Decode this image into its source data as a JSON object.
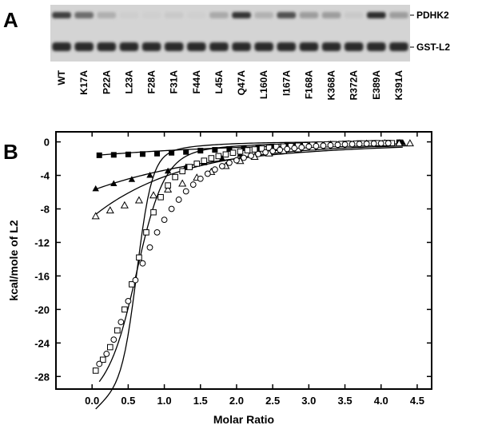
{
  "panel_a": {
    "letter": "A",
    "band_labels": {
      "upper": "PDHK2",
      "lower": "GST-L2"
    },
    "lanes": [
      {
        "label": "WT",
        "pdhk2": 0.78
      },
      {
        "label": "K17A",
        "pdhk2": 0.62
      },
      {
        "label": "P22A",
        "pdhk2": 0.32
      },
      {
        "label": "L23A",
        "pdhk2": 0.07
      },
      {
        "label": "F28A",
        "pdhk2": 0.05
      },
      {
        "label": "F31A",
        "pdhk2": 0.12
      },
      {
        "label": "F44A",
        "pdhk2": 0.05
      },
      {
        "label": "L45A",
        "pdhk2": 0.35
      },
      {
        "label": "Q47A",
        "pdhk2": 0.85
      },
      {
        "label": "L160A",
        "pdhk2": 0.3
      },
      {
        "label": "I167A",
        "pdhk2": 0.72
      },
      {
        "label": "F168A",
        "pdhk2": 0.42
      },
      {
        "label": "K368A",
        "pdhk2": 0.42
      },
      {
        "label": "R372A",
        "pdhk2": 0.12
      },
      {
        "label": "E389A",
        "pdhk2": 0.88
      },
      {
        "label": "K391A",
        "pdhk2": 0.42
      }
    ]
  },
  "panel_b": {
    "letter": "B"
  },
  "chart_data": {
    "type": "scatter",
    "xlabel": "Molar Ratio",
    "ylabel": "kcal/mole of L2",
    "xlim": [
      -0.5,
      4.7
    ],
    "ylim": [
      -29.5,
      1.2
    ],
    "xticks": [
      "0.0",
      "0.5",
      "1.0",
      "1.5",
      "2.0",
      "2.5",
      "3.0",
      "3.5",
      "4.0",
      "4.5"
    ],
    "yticks": [
      "0",
      "-4",
      "-8",
      "-12",
      "-16",
      "-20",
      "-24",
      "-28"
    ],
    "grid": false,
    "series": [
      {
        "marker": "filled-square",
        "x": [
          0.1,
          0.3,
          0.5,
          0.7,
          0.9,
          1.1,
          1.3,
          1.5,
          1.7,
          1.9,
          2.1,
          2.3,
          2.5,
          2.7,
          2.9,
          3.1,
          3.3,
          3.5,
          3.7,
          3.9,
          4.1,
          4.25
        ],
        "y": [
          -1.6,
          -1.55,
          -1.5,
          -1.45,
          -1.4,
          -1.3,
          -1.2,
          -1.05,
          -0.95,
          -0.85,
          -0.75,
          -0.65,
          -0.55,
          -0.45,
          -0.35,
          -0.3,
          -0.25,
          -0.2,
          -0.15,
          -0.12,
          -0.1,
          -0.05
        ],
        "fit": {
          "y0": -1.65,
          "ymax": 0.0,
          "k": 0.45
        }
      },
      {
        "marker": "filled-triangle",
        "x": [
          0.05,
          0.3,
          0.55,
          0.8,
          1.05,
          1.3,
          1.55,
          1.8,
          2.05,
          2.3,
          2.55,
          2.8,
          3.05,
          3.3,
          3.55,
          3.8,
          4.05,
          4.3
        ],
        "y": [
          -5.6,
          -5.0,
          -4.5,
          -4.0,
          -3.5,
          -3.0,
          -2.5,
          -2.0,
          -1.5,
          -1.1,
          -0.8,
          -0.5,
          -0.35,
          -0.25,
          -0.2,
          -0.15,
          -0.1,
          -0.1
        ],
        "fit": {
          "y0": -5.8,
          "ymax": -0.1,
          "k": 0.55
        }
      },
      {
        "marker": "open-triangle",
        "x": [
          0.05,
          0.25,
          0.45,
          0.65,
          0.85,
          1.05,
          1.25,
          1.45,
          1.65,
          1.85,
          2.05,
          2.25,
          2.45,
          2.65,
          2.85,
          3.05,
          3.25,
          3.45,
          3.65,
          3.85,
          4.05,
          4.25,
          4.4
        ],
        "y": [
          -8.9,
          -8.2,
          -7.6,
          -7.0,
          -6.4,
          -5.7,
          -5.0,
          -4.3,
          -3.6,
          -2.9,
          -2.3,
          -1.8,
          -1.4,
          -1.1,
          -0.9,
          -0.7,
          -0.55,
          -0.45,
          -0.35,
          -0.3,
          -0.25,
          -0.2,
          -0.2
        ],
        "fit": {
          "y0": -9.0,
          "ymax": -0.2,
          "k": 0.8
        }
      },
      {
        "marker": "open-square",
        "x": [
          0.05,
          0.15,
          0.25,
          0.35,
          0.45,
          0.55,
          0.65,
          0.75,
          0.85,
          0.95,
          1.05,
          1.15,
          1.25,
          1.35,
          1.45,
          1.55,
          1.65,
          1.75,
          1.85,
          1.95,
          2.05,
          2.15,
          2.25,
          2.35,
          2.45,
          2.55,
          2.65,
          2.75,
          2.85,
          2.95,
          3.05,
          3.15,
          3.25,
          3.35,
          3.45,
          3.55,
          3.65,
          3.75,
          3.85,
          3.95,
          4.05,
          4.15
        ],
        "y": [
          -27.3,
          -26.0,
          -24.5,
          -22.5,
          -20.0,
          -17.0,
          -13.8,
          -10.8,
          -8.4,
          -6.6,
          -5.2,
          -4.2,
          -3.5,
          -3.0,
          -2.6,
          -2.25,
          -1.95,
          -1.7,
          -1.5,
          -1.3,
          -1.15,
          -1.0,
          -0.9,
          -0.8,
          -0.7,
          -0.6,
          -0.55,
          -0.5,
          -0.45,
          -0.4,
          -0.35,
          -0.32,
          -0.3,
          -0.27,
          -0.25,
          -0.22,
          -0.2,
          -0.18,
          -0.17,
          -0.15,
          -0.15,
          -0.15
        ],
        "fit": {
          "a": -27.2,
          "x0": 0.62,
          "w": 0.105,
          "t": -5.2,
          "b": 1.6
        }
      },
      {
        "marker": "open-circle",
        "x": [
          0.1,
          0.2,
          0.3,
          0.4,
          0.5,
          0.6,
          0.7,
          0.8,
          0.9,
          1.0,
          1.1,
          1.2,
          1.3,
          1.4,
          1.5,
          1.6,
          1.7,
          1.8,
          1.9,
          2.0,
          2.1,
          2.2,
          2.3,
          2.4,
          2.5,
          2.6,
          2.7,
          2.8,
          2.9,
          3.0,
          3.1,
          3.2,
          3.3,
          3.4,
          3.5,
          3.6,
          3.7,
          3.8,
          3.9,
          4.0,
          4.1
        ],
        "y": [
          -26.5,
          -25.3,
          -23.6,
          -21.5,
          -19.0,
          -16.5,
          -14.5,
          -12.6,
          -10.8,
          -9.3,
          -8.0,
          -6.9,
          -5.9,
          -5.1,
          -4.4,
          -3.8,
          -3.3,
          -2.9,
          -2.5,
          -2.2,
          -1.9,
          -1.65,
          -1.45,
          -1.25,
          -1.1,
          -0.95,
          -0.85,
          -0.75,
          -0.65,
          -0.55,
          -0.5,
          -0.45,
          -0.4,
          -0.35,
          -0.3,
          -0.27,
          -0.25,
          -0.22,
          -0.2,
          -0.18,
          -0.15
        ],
        "fit": {
          "a": -27.0,
          "x0": 0.62,
          "w": 0.19,
          "t": -3.6,
          "b": 1.0
        }
      }
    ]
  }
}
